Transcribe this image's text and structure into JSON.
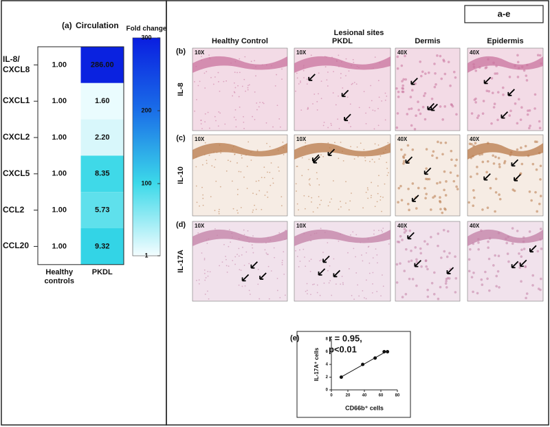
{
  "figure_label": "a-e",
  "panel_a": {
    "label": "(a)",
    "title": "Circulation",
    "rows": [
      "IL-8/ CXCL8",
      "CXCL1",
      "CXCL2",
      "CXCL5",
      "CCL2",
      "CCL20"
    ],
    "columns": [
      "Healthy controls",
      "PKDL"
    ],
    "values": [
      [
        1,
        286
      ],
      [
        1,
        1.6
      ],
      [
        1,
        2.2
      ],
      [
        1,
        8.35
      ],
      [
        1,
        5.73
      ],
      [
        1,
        9.32
      ]
    ],
    "value_labels": [
      [
        "1.00",
        "286.00"
      ],
      [
        "1.00",
        "1.60"
      ],
      [
        "1.00",
        "2.20"
      ],
      [
        "1.00",
        "8.35"
      ],
      [
        "1.00",
        "5.73"
      ],
      [
        "1.00",
        "9.32"
      ]
    ],
    "cell_colors": [
      [
        "#ffffff",
        "#0a22e0"
      ],
      [
        "#ffffff",
        "#eafcfe"
      ],
      [
        "#ffffff",
        "#d8f7fb"
      ],
      [
        "#ffffff",
        "#3fd9e8"
      ],
      [
        "#ffffff",
        "#5fe0ec"
      ],
      [
        "#ffffff",
        "#33d4e6"
      ]
    ],
    "colorbar": {
      "title": "Fold change",
      "lim": [
        1,
        300
      ],
      "ticks": [
        1,
        100,
        200,
        300
      ],
      "colors": [
        "#f4fdff",
        "#3cd9e9",
        "#1a6ee8",
        "#0a1ee0"
      ]
    }
  },
  "panels_bcd": {
    "header": "Lesional sites",
    "columns": [
      "Healthy Control",
      "PKDL",
      "Dermis",
      "Epidermis"
    ],
    "rows": [
      {
        "label": "(b)",
        "marker": "IL-8",
        "magnifications": [
          "10X",
          "10X",
          "40X",
          "40X"
        ]
      },
      {
        "label": "(c)",
        "marker": "IL-10",
        "magnifications": [
          "10X",
          "10X",
          "40X",
          "40X"
        ]
      },
      {
        "label": "(d)",
        "marker": "IL-17A",
        "magnifications": [
          "10X",
          "10X",
          "40X",
          "40X"
        ]
      }
    ]
  },
  "panel_e": {
    "label": "(e)",
    "annotation": [
      "r = 0.95,",
      "p<0.01"
    ],
    "type": "scatter",
    "x_label": "CD66b⁺ cells",
    "y_label": "IL-17A⁺ cells",
    "x": [
      12,
      38,
      53,
      64,
      68
    ],
    "y": [
      2,
      4,
      5,
      6,
      6
    ],
    "xlim": [
      0,
      80
    ],
    "ylim": [
      0,
      8
    ],
    "xticks": [
      0,
      20,
      40,
      60,
      80
    ],
    "yticks": [
      0,
      2,
      4,
      6,
      8
    ],
    "fit_line": true
  }
}
